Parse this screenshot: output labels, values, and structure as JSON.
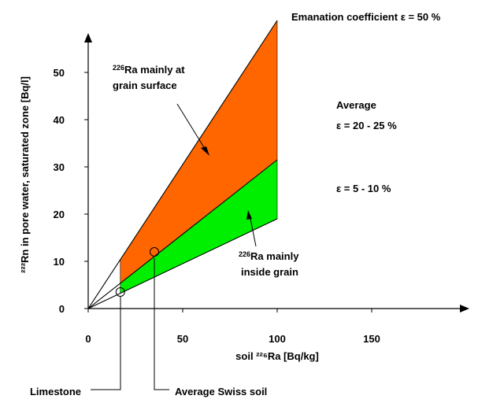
{
  "chart_data": {
    "type": "line",
    "xlabel": "soil ²²⁶Ra [Bq/kg]",
    "ylabel": "²²²Rn in pore water, saturated zone [Bq/l]",
    "xlim": [
      0,
      190
    ],
    "ylim": [
      0,
      60
    ],
    "x_ticks": [
      0,
      50,
      100,
      150
    ],
    "y_ticks": [
      0,
      10,
      20,
      30,
      40,
      50
    ],
    "series": [
      {
        "name": "Emanation coefficient ε = 50 %",
        "x": [
          0,
          100
        ],
        "y": [
          0,
          61
        ]
      },
      {
        "name": "Average ε = 20 - 25 %",
        "x": [
          0,
          100
        ],
        "y": [
          0,
          31.5
        ]
      },
      {
        "name": "ε = 5 - 10 %",
        "x": [
          0,
          100
        ],
        "y": [
          0,
          19
        ]
      }
    ],
    "regions": [
      {
        "name": "²²⁶Ra mainly at grain surface",
        "color": "#ff6600",
        "x_range": [
          17,
          100
        ],
        "lower": "Average ε = 20 - 25 %",
        "upper": "Emanation coefficient ε = 50 %"
      },
      {
        "name": "²²⁶Ra mainly inside grain",
        "color": "#00ee00",
        "x_range": [
          17,
          100
        ],
        "lower": "ε = 5 - 10 %",
        "upper": "Average ε = 20 - 25 %"
      }
    ],
    "points": [
      {
        "name": "Limestone",
        "x": 17,
        "y": 3.5
      },
      {
        "name": "Average Swiss soil",
        "x": 35,
        "y": 12
      }
    ],
    "line_labels": {
      "emanation": "Emanation coefficient ε = 50 %",
      "average": "Average",
      "average_eps": "ε = 20 - 25 %",
      "low_eps": "ε = 5 - 10 %"
    },
    "region_labels": {
      "surface_sup": "226",
      "surface_line1": "Ra mainly at",
      "surface_line2": "grain surface",
      "inside_sup": "226",
      "inside_line1": "Ra mainly",
      "inside_line2": "inside grain"
    },
    "point_labels": {
      "limestone": "Limestone",
      "swiss": "Average Swiss soil"
    },
    "colors": {
      "surface": "#ff6600",
      "inside": "#00ee00"
    }
  }
}
